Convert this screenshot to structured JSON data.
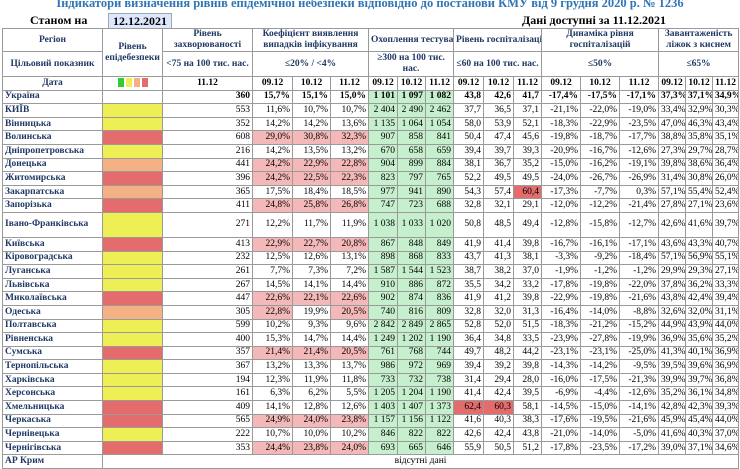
{
  "title": "Індикатори визначення рівнів епідемічної небезпеки відповідно до постанови КМУ від 9 грудня 2020 р. № 1236",
  "as_of_label": "Станом на",
  "as_of_date": "12.12.2021",
  "data_available": "Дані доступні за 11.12.2021",
  "headers": {
    "region": "Регіон",
    "target": "Цільовий показник",
    "date": "Дата",
    "level": "Рівень епідебезпеки",
    "incidence": "Рівень захворюваності",
    "incidence_target": "<75 на 100 тис. нас.",
    "detect": "Коефіцієнт виявлення випадків інфікування",
    "detect_target": "≤20% / <4%",
    "testing": "Охоплення тестуванням",
    "testing_target": "≥300 на 100 тис. нас.",
    "hosp": "Рівень госпіталізацій",
    "hosp_target": "≤60 на 100 тис. нас.",
    "dyn": "Динаміка рівня госпіталізацій",
    "dyn_target": "≤50%",
    "beds": "Завантаженість ліжок з киснем",
    "beds_target": "≤65%"
  },
  "dates": {
    "inc": "11.12",
    "d1": "09.12",
    "d2": "10.12",
    "d3": "11.12"
  },
  "colors": {
    "green": "#33cc33",
    "yellow": "#eeee55",
    "orange": "#f4b183",
    "red": "#e46c6c",
    "pink": "#f4b8b8",
    "light_green": "#c6efce"
  },
  "rows": [
    {
      "name": "Україна",
      "lvl": "",
      "inc": "360",
      "det": [
        "15,7%",
        "15,1%",
        "15,0%"
      ],
      "tst": [
        "1 101",
        "1 097",
        "1 082"
      ],
      "hosp": [
        "43,8",
        "42,6",
        "41,7"
      ],
      "dyn": [
        "-17,4%",
        "-17,5%",
        "-17,1%"
      ],
      "beds": [
        "37,3%",
        "37,1%",
        "34,9%"
      ]
    },
    {
      "name": "КИЇВ",
      "lvl": "yellow",
      "inc": "553",
      "det": [
        "11,6%",
        "10,7%",
        "10,7%"
      ],
      "tst": [
        "2 404",
        "2 490",
        "2 462"
      ],
      "hosp": [
        "37,7",
        "36,5",
        "37,1"
      ],
      "dyn": [
        "-21,1%",
        "-22,0%",
        "-19,0%"
      ],
      "beds": [
        "33,4%",
        "32,9%",
        "30,3%"
      ]
    },
    {
      "name": "Вінницька",
      "lvl": "yellow",
      "inc": "352",
      "det": [
        "14,2%",
        "14,2%",
        "13,6%"
      ],
      "tst": [
        "1 135",
        "1 064",
        "1 054"
      ],
      "hosp": [
        "58,0",
        "53,9",
        "52,1"
      ],
      "dyn": [
        "-18,3%",
        "-22,9%",
        "-23,5%"
      ],
      "beds": [
        "47,0%",
        "46,3%",
        "43,4%"
      ]
    },
    {
      "name": "Волинська",
      "lvl": "red",
      "inc": "608",
      "det": [
        "29,0%",
        "30,8%",
        "32,3%"
      ],
      "tst": [
        "907",
        "858",
        "841"
      ],
      "hosp": [
        "50,4",
        "47,4",
        "45,6"
      ],
      "dyn": [
        "-19,8%",
        "-18,7%",
        "-17,7%"
      ],
      "beds": [
        "38,8%",
        "35,8%",
        "35,1%"
      ]
    },
    {
      "name": "Дніпропетровська",
      "lvl": "yellow",
      "inc": "216",
      "det": [
        "14,2%",
        "13,5%",
        "13,2%"
      ],
      "tst": [
        "670",
        "658",
        "659"
      ],
      "hosp": [
        "39,4",
        "39,7",
        "39,3"
      ],
      "dyn": [
        "-20,9%",
        "-16,7%",
        "-12,6%"
      ],
      "beds": [
        "27,3%",
        "29,7%",
        "28,7%"
      ]
    },
    {
      "name": "Донецька",
      "lvl": "orange",
      "inc": "441",
      "det": [
        "24,2%",
        "22,9%",
        "22,8%"
      ],
      "tst": [
        "904",
        "899",
        "884"
      ],
      "hosp": [
        "38,1",
        "36,7",
        "35,2"
      ],
      "dyn": [
        "-15,0%",
        "-16,2%",
        "-19,1%"
      ],
      "beds": [
        "39,8%",
        "38,6%",
        "36,4%"
      ]
    },
    {
      "name": "Житомирська",
      "lvl": "red",
      "inc": "396",
      "det": [
        "24,2%",
        "22,5%",
        "22,3%"
      ],
      "tst": [
        "823",
        "797",
        "765"
      ],
      "hosp": [
        "52,2",
        "49,5",
        "49,5"
      ],
      "dyn": [
        "-24,0%",
        "-26,7%",
        "-26,9%"
      ],
      "beds": [
        "31,4%",
        "30,8%",
        "26,0%"
      ]
    },
    {
      "name": "Закарпатська",
      "lvl": "orange",
      "inc": "365",
      "det": [
        "17,5%",
        "18,4%",
        "18,5%"
      ],
      "tst": [
        "977",
        "941",
        "890"
      ],
      "hosp": [
        "54,3",
        "57,4",
        "60,4"
      ],
      "dyn": [
        "-17,3%",
        "-7,7%",
        "0,3%"
      ],
      "beds": [
        "57,1%",
        "55,4%",
        "52,4%"
      ]
    },
    {
      "name": "Запорізька",
      "lvl": "red",
      "inc": "411",
      "det": [
        "24,8%",
        "25,8%",
        "26,8%"
      ],
      "tst": [
        "747",
        "723",
        "688"
      ],
      "hosp": [
        "32,8",
        "32,1",
        "29,1"
      ],
      "dyn": [
        "-12,0%",
        "-12,2%",
        "-21,4%"
      ],
      "beds": [
        "27,8%",
        "27,1%",
        "23,6%"
      ]
    },
    {
      "name": "Івано-Франківська",
      "lvl": "yellow",
      "inc": "271",
      "det": [
        "12,2%",
        "11,7%",
        "11,9%"
      ],
      "tst": [
        "1 038",
        "1 033",
        "1 020"
      ],
      "hosp": [
        "50,8",
        "48,5",
        "49,4"
      ],
      "dyn": [
        "-12,8%",
        "-15,8%",
        "-12,7%"
      ],
      "beds": [
        "42,6%",
        "41,6%",
        "39,7%"
      ],
      "tall": true
    },
    {
      "name": "Київська",
      "lvl": "red",
      "inc": "413",
      "det": [
        "22,9%",
        "22,7%",
        "20,8%"
      ],
      "tst": [
        "867",
        "848",
        "849"
      ],
      "hosp": [
        "41,9",
        "41,4",
        "39,8"
      ],
      "dyn": [
        "-16,7%",
        "-16,1%",
        "-17,1%"
      ],
      "beds": [
        "43,6%",
        "43,3%",
        "40,7%"
      ]
    },
    {
      "name": "Кіровоградська",
      "lvl": "yellow",
      "inc": "232",
      "det": [
        "12,5%",
        "12,6%",
        "13,1%"
      ],
      "tst": [
        "898",
        "868",
        "833"
      ],
      "hosp": [
        "43,7",
        "41,3",
        "38,1"
      ],
      "dyn": [
        "-3,3%",
        "-9,2%",
        "-18,4%"
      ],
      "beds": [
        "57,1%",
        "56,9%",
        "55,1%"
      ]
    },
    {
      "name": "Луганська",
      "lvl": "yellow",
      "inc": "261",
      "det": [
        "7,7%",
        "7,3%",
        "7,2%"
      ],
      "tst": [
        "1 587",
        "1 544",
        "1 523"
      ],
      "hosp": [
        "38,7",
        "38,2",
        "37,0"
      ],
      "dyn": [
        "-1,9%",
        "-1,2%",
        "-1,2%"
      ],
      "beds": [
        "29,9%",
        "29,3%",
        "27,1%"
      ]
    },
    {
      "name": "Львівська",
      "lvl": "yellow",
      "inc": "267",
      "det": [
        "14,5%",
        "14,1%",
        "14,4%"
      ],
      "tst": [
        "910",
        "886",
        "872"
      ],
      "hosp": [
        "35,5",
        "34,2",
        "33,2"
      ],
      "dyn": [
        "-17,8%",
        "-19,8%",
        "-22,0%"
      ],
      "beds": [
        "37,8%",
        "36,2%",
        "33,3%"
      ]
    },
    {
      "name": "Миколаївська",
      "lvl": "red",
      "inc": "447",
      "det": [
        "22,6%",
        "22,1%",
        "22,6%"
      ],
      "tst": [
        "902",
        "874",
        "836"
      ],
      "hosp": [
        "41,9",
        "41,2",
        "39,8"
      ],
      "dyn": [
        "-22,9%",
        "-19,8%",
        "-21,6%"
      ],
      "beds": [
        "43,8%",
        "42,4%",
        "39,4%"
      ]
    },
    {
      "name": "Одеська",
      "lvl": "orange",
      "inc": "305",
      "det": [
        "22,8%",
        "19,9%",
        "20,5%"
      ],
      "tst": [
        "740",
        "816",
        "809"
      ],
      "hosp": [
        "32,8",
        "32,0",
        "31,3"
      ],
      "dyn": [
        "-16,4%",
        "-14,0%",
        "-8,8%"
      ],
      "beds": [
        "32,6%",
        "32,0%",
        "31,1%"
      ]
    },
    {
      "name": "Полтавська",
      "lvl": "yellow",
      "inc": "599",
      "det": [
        "10,2%",
        "9,3%",
        "9,6%"
      ],
      "tst": [
        "2 842",
        "2 849",
        "2 865"
      ],
      "hosp": [
        "52,8",
        "52,0",
        "51,5"
      ],
      "dyn": [
        "-18,3%",
        "-21,2%",
        "-15,2%"
      ],
      "beds": [
        "44,9%",
        "43,9%",
        "44,0%"
      ]
    },
    {
      "name": "Рівненська",
      "lvl": "yellow",
      "inc": "400",
      "det": [
        "15,3%",
        "14,7%",
        "14,4%"
      ],
      "tst": [
        "1 249",
        "1 202",
        "1 190"
      ],
      "hosp": [
        "36,4",
        "34,8",
        "33,5"
      ],
      "dyn": [
        "-23,9%",
        "-27,8%",
        "-19,9%"
      ],
      "beds": [
        "36,9%",
        "35,6%",
        "35,2%"
      ]
    },
    {
      "name": "Сумська",
      "lvl": "red",
      "inc": "357",
      "det": [
        "21,4%",
        "21,4%",
        "20,5%"
      ],
      "tst": [
        "761",
        "768",
        "744"
      ],
      "hosp": [
        "49,7",
        "48,2",
        "44,2"
      ],
      "dyn": [
        "-23,1%",
        "-23,1%",
        "-25,0%"
      ],
      "beds": [
        "41,3%",
        "40,1%",
        "36,9%"
      ]
    },
    {
      "name": "Тернопільська",
      "lvl": "yellow",
      "inc": "367",
      "det": [
        "13,2%",
        "13,3%",
        "13,7%"
      ],
      "tst": [
        "986",
        "972",
        "969"
      ],
      "hosp": [
        "39,4",
        "39,2",
        "39,8"
      ],
      "dyn": [
        "-14,3%",
        "-14,2%",
        "-9,5%"
      ],
      "beds": [
        "39,5%",
        "39,6%",
        "36,9%"
      ]
    },
    {
      "name": "Харківська",
      "lvl": "yellow",
      "inc": "194",
      "det": [
        "12,3%",
        "11,9%",
        "11,8%"
      ],
      "tst": [
        "733",
        "732",
        "738"
      ],
      "hosp": [
        "31,4",
        "29,4",
        "28,0"
      ],
      "dyn": [
        "-16,0%",
        "-17,5%",
        "-21,3%"
      ],
      "beds": [
        "39,9%",
        "39,7%",
        "36,8%"
      ]
    },
    {
      "name": "Херсонська",
      "lvl": "yellow",
      "inc": "161",
      "det": [
        "6,3%",
        "6,2%",
        "5,5%"
      ],
      "tst": [
        "1 205",
        "1 204",
        "1 190"
      ],
      "hosp": [
        "41,4",
        "42,4",
        "39,5"
      ],
      "dyn": [
        "-6,9%",
        "-4,4%",
        "-12,6%"
      ],
      "beds": [
        "35,2%",
        "36,1%",
        "34,8%"
      ]
    },
    {
      "name": "Хмельницька",
      "lvl": "red",
      "inc": "409",
      "det": [
        "14,1%",
        "12,8%",
        "12,6%"
      ],
      "tst": [
        "1 403",
        "1 407",
        "1 373"
      ],
      "hosp": [
        "62,4",
        "60,3",
        "58,1"
      ],
      "dyn": [
        "-14,5%",
        "-15,0%",
        "-14,1%"
      ],
      "beds": [
        "42,8%",
        "42,3%",
        "39,3%"
      ]
    },
    {
      "name": "Черкаська",
      "lvl": "red",
      "inc": "565",
      "det": [
        "24,9%",
        "24,0%",
        "23,8%"
      ],
      "tst": [
        "1 157",
        "1 156",
        "1 122"
      ],
      "hosp": [
        "41,6",
        "40,3",
        "38,3"
      ],
      "dyn": [
        "-17,6%",
        "-19,5%",
        "-21,6%"
      ],
      "beds": [
        "45,9%",
        "45,4%",
        "44,0%"
      ]
    },
    {
      "name": "Чернівецька",
      "lvl": "yellow",
      "inc": "222",
      "det": [
        "10,7%",
        "10,0%",
        "10,2%"
      ],
      "tst": [
        "846",
        "822",
        "822"
      ],
      "hosp": [
        "42,6",
        "42,4",
        "43,8"
      ],
      "dyn": [
        "-21,0%",
        "-14,0%",
        "-5,0%"
      ],
      "beds": [
        "41,6%",
        "40,3%",
        "37,0%"
      ]
    },
    {
      "name": "Чернігівська",
      "lvl": "red",
      "inc": "353",
      "det": [
        "24,4%",
        "23,8%",
        "24,0%"
      ],
      "tst": [
        "693",
        "665",
        "646"
      ],
      "hosp": [
        "55,9",
        "50,5",
        "51,2"
      ],
      "dyn": [
        "-17,8%",
        "-23,5%",
        "-17,2%"
      ],
      "beds": [
        "39,0%",
        "37,1%",
        "34,6%"
      ]
    }
  ],
  "crimea": {
    "name": "АР Крим",
    "note": "відсутні дані"
  }
}
